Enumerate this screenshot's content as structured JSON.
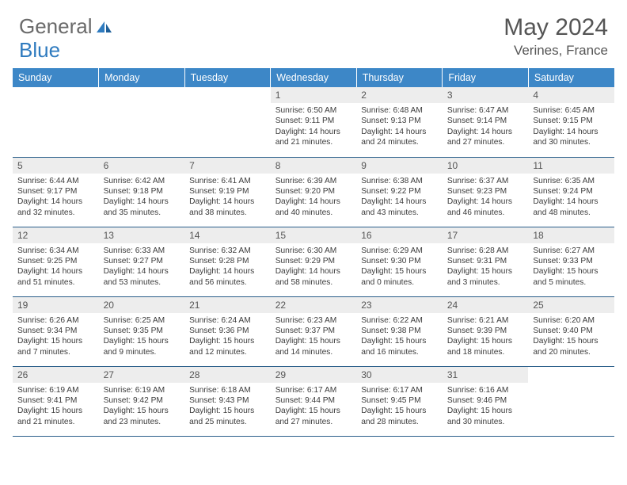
{
  "brand": {
    "word1": "General",
    "word2": "Blue",
    "logo_color": "#2f7bbf",
    "text_color": "#6a6a6a"
  },
  "title": "May 2024",
  "location": "Verines, France",
  "colors": {
    "header_bg": "#3d87c7",
    "header_text": "#ffffff",
    "daynum_bg": "#ededed",
    "row_border": "#2a5e8a",
    "body_text": "#3b3b3b"
  },
  "weekdays": [
    "Sunday",
    "Monday",
    "Tuesday",
    "Wednesday",
    "Thursday",
    "Friday",
    "Saturday"
  ],
  "first_weekday_index": 3,
  "days": [
    {
      "n": 1,
      "sunrise": "6:50 AM",
      "sunset": "9:11 PM",
      "day_h": 14,
      "day_m": 21
    },
    {
      "n": 2,
      "sunrise": "6:48 AM",
      "sunset": "9:13 PM",
      "day_h": 14,
      "day_m": 24
    },
    {
      "n": 3,
      "sunrise": "6:47 AM",
      "sunset": "9:14 PM",
      "day_h": 14,
      "day_m": 27
    },
    {
      "n": 4,
      "sunrise": "6:45 AM",
      "sunset": "9:15 PM",
      "day_h": 14,
      "day_m": 30
    },
    {
      "n": 5,
      "sunrise": "6:44 AM",
      "sunset": "9:17 PM",
      "day_h": 14,
      "day_m": 32
    },
    {
      "n": 6,
      "sunrise": "6:42 AM",
      "sunset": "9:18 PM",
      "day_h": 14,
      "day_m": 35
    },
    {
      "n": 7,
      "sunrise": "6:41 AM",
      "sunset": "9:19 PM",
      "day_h": 14,
      "day_m": 38
    },
    {
      "n": 8,
      "sunrise": "6:39 AM",
      "sunset": "9:20 PM",
      "day_h": 14,
      "day_m": 40
    },
    {
      "n": 9,
      "sunrise": "6:38 AM",
      "sunset": "9:22 PM",
      "day_h": 14,
      "day_m": 43
    },
    {
      "n": 10,
      "sunrise": "6:37 AM",
      "sunset": "9:23 PM",
      "day_h": 14,
      "day_m": 46
    },
    {
      "n": 11,
      "sunrise": "6:35 AM",
      "sunset": "9:24 PM",
      "day_h": 14,
      "day_m": 48
    },
    {
      "n": 12,
      "sunrise": "6:34 AM",
      "sunset": "9:25 PM",
      "day_h": 14,
      "day_m": 51
    },
    {
      "n": 13,
      "sunrise": "6:33 AM",
      "sunset": "9:27 PM",
      "day_h": 14,
      "day_m": 53
    },
    {
      "n": 14,
      "sunrise": "6:32 AM",
      "sunset": "9:28 PM",
      "day_h": 14,
      "day_m": 56
    },
    {
      "n": 15,
      "sunrise": "6:30 AM",
      "sunset": "9:29 PM",
      "day_h": 14,
      "day_m": 58
    },
    {
      "n": 16,
      "sunrise": "6:29 AM",
      "sunset": "9:30 PM",
      "day_h": 15,
      "day_m": 0
    },
    {
      "n": 17,
      "sunrise": "6:28 AM",
      "sunset": "9:31 PM",
      "day_h": 15,
      "day_m": 3
    },
    {
      "n": 18,
      "sunrise": "6:27 AM",
      "sunset": "9:33 PM",
      "day_h": 15,
      "day_m": 5
    },
    {
      "n": 19,
      "sunrise": "6:26 AM",
      "sunset": "9:34 PM",
      "day_h": 15,
      "day_m": 7
    },
    {
      "n": 20,
      "sunrise": "6:25 AM",
      "sunset": "9:35 PM",
      "day_h": 15,
      "day_m": 9
    },
    {
      "n": 21,
      "sunrise": "6:24 AM",
      "sunset": "9:36 PM",
      "day_h": 15,
      "day_m": 12
    },
    {
      "n": 22,
      "sunrise": "6:23 AM",
      "sunset": "9:37 PM",
      "day_h": 15,
      "day_m": 14
    },
    {
      "n": 23,
      "sunrise": "6:22 AM",
      "sunset": "9:38 PM",
      "day_h": 15,
      "day_m": 16
    },
    {
      "n": 24,
      "sunrise": "6:21 AM",
      "sunset": "9:39 PM",
      "day_h": 15,
      "day_m": 18
    },
    {
      "n": 25,
      "sunrise": "6:20 AM",
      "sunset": "9:40 PM",
      "day_h": 15,
      "day_m": 20
    },
    {
      "n": 26,
      "sunrise": "6:19 AM",
      "sunset": "9:41 PM",
      "day_h": 15,
      "day_m": 21
    },
    {
      "n": 27,
      "sunrise": "6:19 AM",
      "sunset": "9:42 PM",
      "day_h": 15,
      "day_m": 23
    },
    {
      "n": 28,
      "sunrise": "6:18 AM",
      "sunset": "9:43 PM",
      "day_h": 15,
      "day_m": 25
    },
    {
      "n": 29,
      "sunrise": "6:17 AM",
      "sunset": "9:44 PM",
      "day_h": 15,
      "day_m": 27
    },
    {
      "n": 30,
      "sunrise": "6:17 AM",
      "sunset": "9:45 PM",
      "day_h": 15,
      "day_m": 28
    },
    {
      "n": 31,
      "sunrise": "6:16 AM",
      "sunset": "9:46 PM",
      "day_h": 15,
      "day_m": 30
    }
  ],
  "labels": {
    "sunrise_prefix": "Sunrise: ",
    "sunset_prefix": "Sunset: ",
    "daylight_prefix": "Daylight: ",
    "hours_word": " hours",
    "and_word": "and ",
    "minutes_word": " minutes."
  }
}
